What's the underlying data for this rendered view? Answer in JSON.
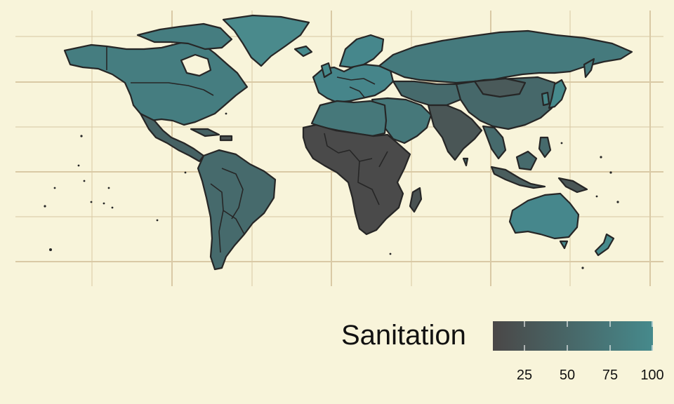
{
  "legend": {
    "title": "Sanitation",
    "ticks": [
      "25",
      "50",
      "75",
      "100"
    ],
    "tick_values": [
      25,
      50,
      75,
      100
    ],
    "range": [
      6,
      100
    ],
    "color_low": "#4a4747",
    "color_high": "#468a8c"
  },
  "colors": {
    "background": "#f8f4da",
    "grid": "#d9c9a5",
    "border": "#262626"
  }
}
